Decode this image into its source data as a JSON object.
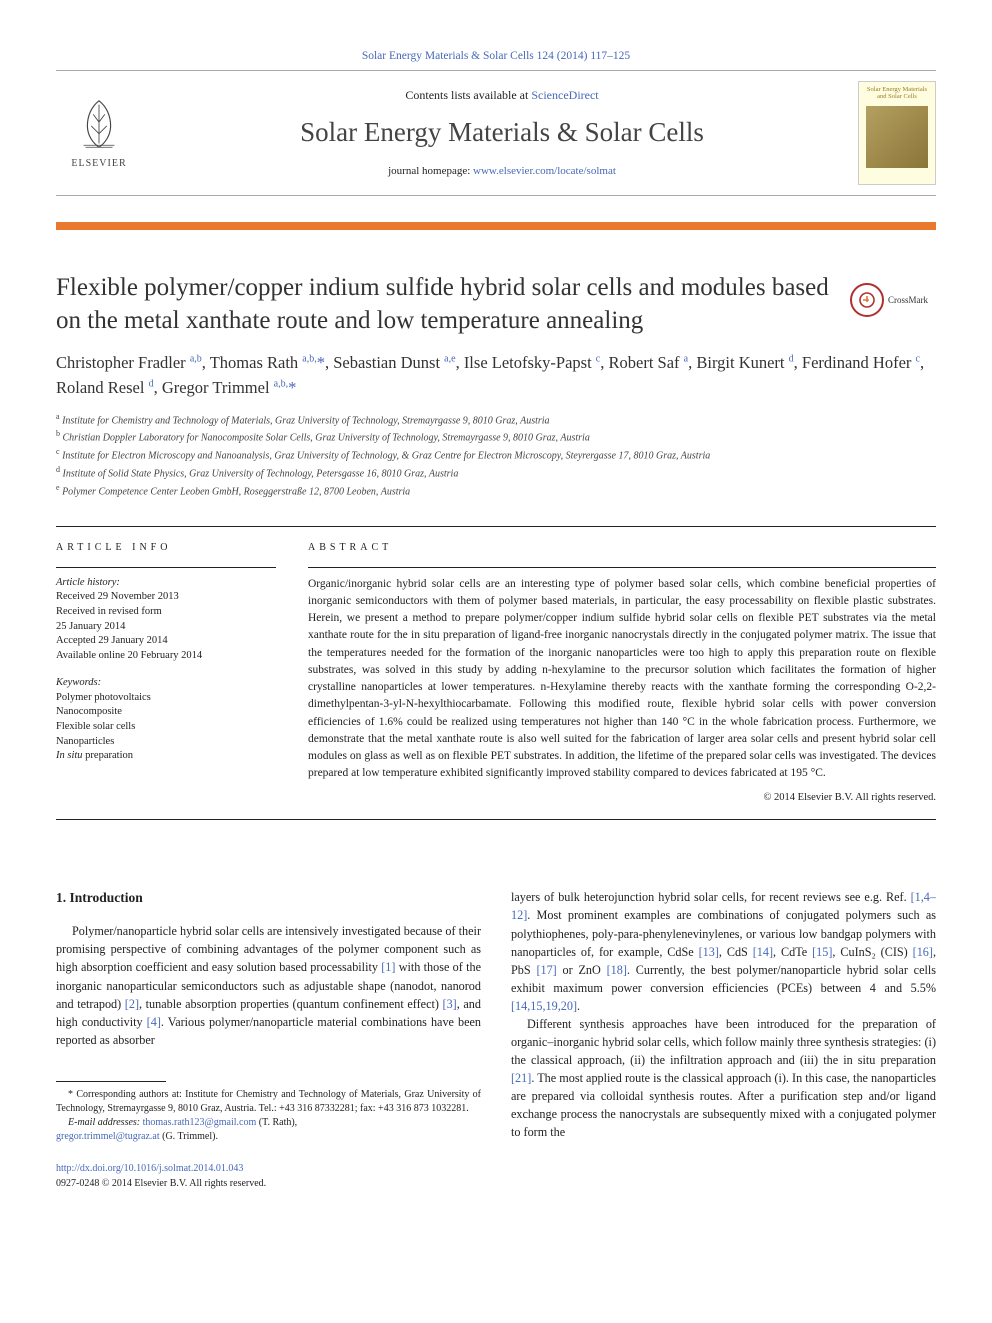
{
  "header": {
    "top_link_text": "Solar Energy Materials & Solar Cells 124 (2014) 117–125",
    "contents_prefix": "Contents lists available at ",
    "contents_link": "ScienceDirect",
    "journal_name": "Solar Energy Materials & Solar Cells",
    "homepage_prefix": "journal homepage: ",
    "homepage_link": "www.elsevier.com/locate/solmat",
    "elsevier_label": "ELSEVIER",
    "cover_title": "Solar Energy Materials and Solar Cells",
    "crossmark": "CrossMark"
  },
  "article": {
    "title": "Flexible polymer/copper indium sulfide hybrid solar cells and modules based on the metal xanthate route and low temperature annealing",
    "authors_html": "Christopher Fradler <sup>a,b</sup>, Thomas Rath <sup>a,b,</sup><span class='ast'>*</span>, Sebastian Dunst <sup>a,e</sup>, Ilse Letofsky-Papst <sup>c</sup>, Robert Saf <sup>a</sup>, Birgit Kunert <sup>d</sup>, Ferdinand Hofer <sup>c</sup>, Roland Resel <sup>d</sup>, Gregor Trimmel <sup>a,b,</sup><span class='ast'>*</span>",
    "affiliations": [
      {
        "sup": "a",
        "text": "Institute for Chemistry and Technology of Materials, Graz University of Technology, Stremayrgasse 9, 8010 Graz, Austria"
      },
      {
        "sup": "b",
        "text": "Christian Doppler Laboratory for Nanocomposite Solar Cells, Graz University of Technology, Stremayrgasse 9, 8010 Graz, Austria"
      },
      {
        "sup": "c",
        "text": "Institute for Electron Microscopy and Nanoanalysis, Graz University of Technology, & Graz Centre for Electron Microscopy, Steyrergasse 17, 8010 Graz, Austria"
      },
      {
        "sup": "d",
        "text": "Institute of Solid State Physics, Graz University of Technology, Petersgasse 16, 8010 Graz, Austria"
      },
      {
        "sup": "e",
        "text": "Polymer Competence Center Leoben GmbH, Roseggerstraße 12, 8700 Leoben, Austria"
      }
    ]
  },
  "info": {
    "label": "ARTICLE INFO",
    "history_label": "Article history:",
    "history": [
      "Received 29 November 2013",
      "Received in revised form",
      "25 January 2014",
      "Accepted 29 January 2014",
      "Available online 20 February 2014"
    ],
    "keywords_label": "Keywords:",
    "keywords": [
      "Polymer photovoltaics",
      "Nanocomposite",
      "Flexible solar cells",
      "Nanoparticles",
      "In situ preparation"
    ]
  },
  "abstract": {
    "label": "ABSTRACT",
    "text": "Organic/inorganic hybrid solar cells are an interesting type of polymer based solar cells, which combine beneficial properties of inorganic semiconductors with them of polymer based materials, in particular, the easy processability on flexible plastic substrates. Herein, we present a method to prepare polymer/copper indium sulfide hybrid solar cells on flexible PET substrates via the metal xanthate route for the in situ preparation of ligand-free inorganic nanocrystals directly in the conjugated polymer matrix. The issue that the temperatures needed for the formation of the inorganic nanoparticles were too high to apply this preparation route on flexible substrates, was solved in this study by adding n-hexylamine to the precursor solution which facilitates the formation of higher crystalline nanoparticles at lower temperatures. n-Hexylamine thereby reacts with the xanthate forming the corresponding O-2,2-dimethylpentan-3-yl-N-hexylthiocarbamate. Following this modified route, flexible hybrid solar cells with power conversion efficiencies of 1.6% could be realized using temperatures not higher than 140 °C in the whole fabrication process. Furthermore, we demonstrate that the metal xanthate route is also well suited for the fabrication of larger area solar cells and present hybrid solar cell modules on glass as well as on flexible PET substrates. In addition, the lifetime of the prepared solar cells was investigated. The devices prepared at low temperature exhibited significantly improved stability compared to devices fabricated at 195 °C.",
    "copyright": "© 2014 Elsevier B.V. All rights reserved."
  },
  "body": {
    "heading": "1.  Introduction",
    "col1_p1_pre": "Polymer/nanoparticle hybrid solar cells are intensively investigated because of their promising perspective of combining advantages of the polymer component such as high absorption coefficient and easy solution based processability ",
    "ref1": "[1]",
    "col1_p1_mid1": " with those of the inorganic nanoparticular semiconductors such as adjustable shape (nanodot, nanorod and tetrapod) ",
    "ref2": "[2]",
    "col1_p1_mid2": ", tunable absorption properties (quantum confinement effect) ",
    "ref3": "[3]",
    "col1_p1_mid3": ", and high conductivity ",
    "ref4": "[4]",
    "col1_p1_post": ". Various polymer/nanoparticle material combinations have been reported as absorber",
    "col2_p1_pre": "layers of bulk heterojunction hybrid solar cells, for recent reviews see e.g. Ref. ",
    "ref5": "[1,4–12]",
    "col2_p1_mid1": ". Most prominent examples are combinations of conjugated polymers such as polythiophenes, poly-para-phenylenevinylenes, or various low bandgap polymers with nanoparticles of, for example, CdSe ",
    "ref6": "[13]",
    "col2_p1_mid2": ", CdS ",
    "ref7": "[14]",
    "col2_p1_mid3": ", CdTe ",
    "ref8": "[15]",
    "col2_p1_mid4": ", CuInS₂ (CIS) ",
    "ref9": "[16]",
    "col2_p1_mid5": ", PbS ",
    "ref10": "[17]",
    "col2_p1_mid6": " or ZnO ",
    "ref11": "[18]",
    "col2_p1_mid7": ". Currently, the best polymer/nanoparticle hybrid solar cells exhibit maximum power conversion efficiencies (PCEs) between 4 and 5.5% ",
    "ref12": "[14,15,19,20]",
    "col2_p1_post": ".",
    "col2_p2_pre": "Different synthesis approaches have been introduced for the preparation of organic–inorganic hybrid solar cells, which follow mainly three synthesis strategies: (i) the classical approach, (ii) the infiltration approach and (iii) the in situ preparation ",
    "ref13": "[21]",
    "col2_p2_post": ". The most applied route is the classical approach (i). In this case, the nanoparticles are prepared via colloidal synthesis routes. After a purification step and/or ligand exchange process the nanocrystals are subsequently mixed with a conjugated polymer to form the"
  },
  "footnote": {
    "corr_pre": "* Corresponding authors at: Institute for Chemistry and Technology of Materials, Graz University of Technology, Stremayrgasse 9, 8010 Graz, Austria. Tel.: +43 316 87332281; fax: +43 316 873 1032281.",
    "email_label": "E-mail addresses: ",
    "email1": "thomas.rath123@gmail.com",
    "email1_name": " (T. Rath),",
    "email2": "gregor.trimmel@tugraz.at",
    "email2_name": " (G. Trimmel)."
  },
  "doi": {
    "link": "http://dx.doi.org/10.1016/j.solmat.2014.01.043",
    "issn_line": "0927-0248 © 2014 Elsevier B.V. All rights reserved."
  },
  "colors": {
    "link": "#4669b8",
    "orange": "#e8792f",
    "text": "#222222"
  }
}
